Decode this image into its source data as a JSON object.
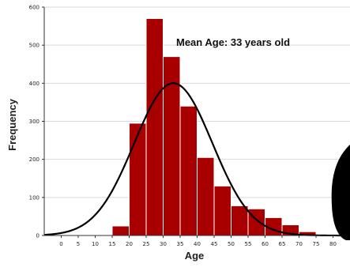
{
  "chart_data": {
    "type": "bar",
    "title": "",
    "xlabel": "Age",
    "ylabel": "Frequency",
    "annotation": "Mean Age: 33 years old",
    "xlim": [
      -5,
      85
    ],
    "ylim": [
      0,
      600
    ],
    "x_ticks": [
      "0",
      "5",
      "10",
      "15",
      "20",
      "25",
      "30",
      "35",
      "40",
      "45",
      "50",
      "55",
      "60",
      "65",
      "70",
      "75",
      "80"
    ],
    "y_ticks": [
      "0",
      "100",
      "200",
      "300",
      "400",
      "500",
      "600"
    ],
    "bins": [
      {
        "x0": 15,
        "x1": 20,
        "value": 25
      },
      {
        "x0": 20,
        "x1": 25,
        "value": 295
      },
      {
        "x0": 25,
        "x1": 30,
        "value": 570
      },
      {
        "x0": 30,
        "x1": 35,
        "value": 470
      },
      {
        "x0": 35,
        "x1": 40,
        "value": 340
      },
      {
        "x0": 40,
        "x1": 45,
        "value": 205
      },
      {
        "x0": 45,
        "x1": 50,
        "value": 130
      },
      {
        "x0": 50,
        "x1": 55,
        "value": 78
      },
      {
        "x0": 55,
        "x1": 60,
        "value": 70
      },
      {
        "x0": 60,
        "x1": 65,
        "value": 47
      },
      {
        "x0": 65,
        "x1": 70,
        "value": 28
      },
      {
        "x0": 70,
        "x1": 75,
        "value": 10
      }
    ],
    "normal_curve": {
      "mean": 33,
      "peak": 400,
      "sd": 11.5
    },
    "grid": true,
    "bar_color": "#a80000",
    "curve_color": "#000000"
  }
}
